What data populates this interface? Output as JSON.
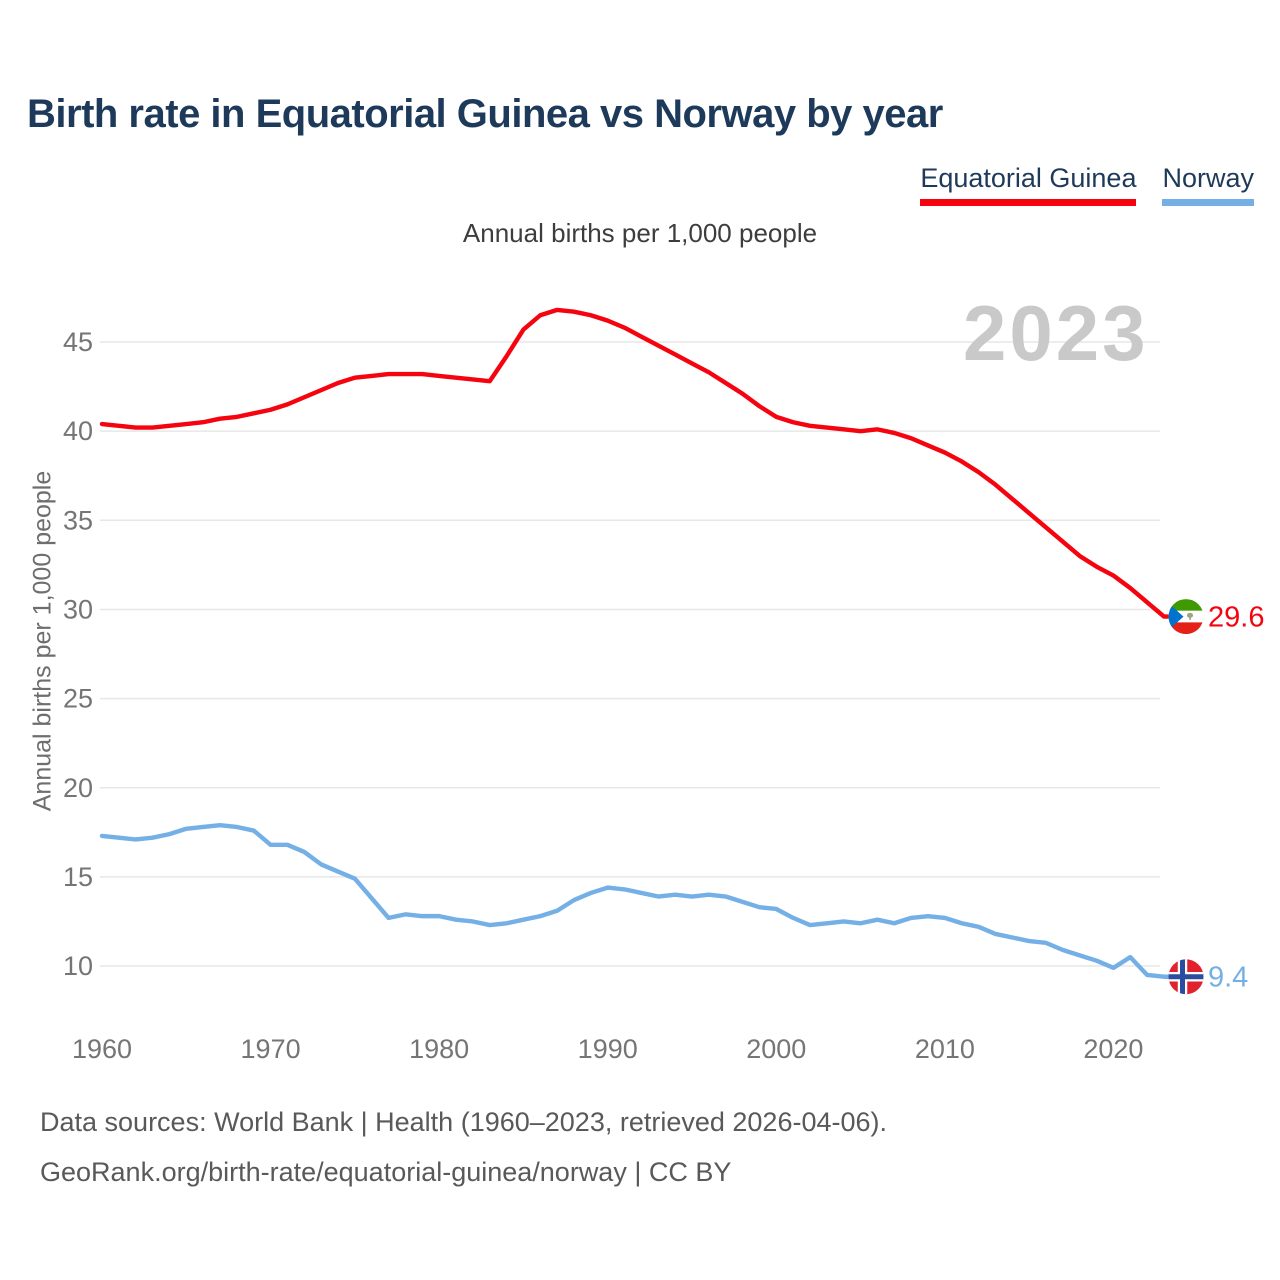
{
  "header": {
    "title": "Birth rate in Equatorial Guinea vs Norway by year"
  },
  "legend": [
    {
      "label": "Equatorial Guinea",
      "color": "#f5040f"
    },
    {
      "label": "Norway",
      "color": "#74b0e6"
    }
  ],
  "watermark": {
    "label": "2023"
  },
  "chart_data": {
    "type": "line",
    "title": "Birth rate in Equatorial Guinea vs Norway by year",
    "subtitle": "Annual births per 1,000 people",
    "ylabel": "Annual births per 1,000 people",
    "xlabel": "",
    "grid": "horizontal",
    "legend_position": "top-right",
    "xticks": [
      1960,
      1970,
      1980,
      1990,
      2000,
      2010,
      2020
    ],
    "yticks": [
      10,
      15,
      20,
      25,
      30,
      35,
      40,
      45
    ],
    "xlim": [
      1960,
      2023
    ],
    "ylim": [
      8.5,
      48
    ],
    "x": [
      1960,
      1961,
      1962,
      1963,
      1964,
      1965,
      1966,
      1967,
      1968,
      1969,
      1970,
      1971,
      1972,
      1973,
      1974,
      1975,
      1976,
      1977,
      1978,
      1979,
      1980,
      1981,
      1982,
      1983,
      1984,
      1985,
      1986,
      1987,
      1988,
      1989,
      1990,
      1991,
      1992,
      1993,
      1994,
      1995,
      1996,
      1997,
      1998,
      1999,
      2000,
      2001,
      2002,
      2003,
      2004,
      2005,
      2006,
      2007,
      2008,
      2009,
      2010,
      2011,
      2012,
      2013,
      2014,
      2015,
      2016,
      2017,
      2018,
      2019,
      2020,
      2021,
      2022,
      2023
    ],
    "series": [
      {
        "name": "Equatorial Guinea",
        "color": "#f5040f",
        "flag": "equatorial-guinea-flag",
        "end_label": "29.6",
        "end_value": 29.6,
        "values": [
          40.4,
          40.3,
          40.2,
          40.2,
          40.3,
          40.4,
          40.5,
          40.7,
          40.8,
          41.0,
          41.2,
          41.5,
          41.9,
          42.3,
          42.7,
          43.0,
          43.1,
          43.2,
          43.2,
          43.2,
          43.1,
          43.0,
          42.9,
          42.8,
          44.2,
          45.7,
          46.5,
          46.8,
          46.7,
          46.5,
          46.2,
          45.8,
          45.3,
          44.8,
          44.3,
          43.8,
          43.3,
          42.7,
          42.1,
          41.4,
          40.8,
          40.5,
          40.3,
          40.2,
          40.1,
          40.0,
          40.1,
          39.9,
          39.6,
          39.2,
          38.8,
          38.3,
          37.7,
          37.0,
          36.2,
          35.4,
          34.6,
          33.8,
          33.0,
          32.4,
          31.9,
          31.2,
          30.4,
          29.6
        ]
      },
      {
        "name": "Norway",
        "color": "#74b0e6",
        "flag": "norway-flag",
        "end_label": "9.4",
        "end_value": 9.4,
        "values": [
          17.3,
          17.2,
          17.1,
          17.2,
          17.4,
          17.7,
          17.8,
          17.9,
          17.8,
          17.6,
          16.8,
          16.8,
          16.4,
          15.7,
          15.3,
          14.9,
          13.8,
          12.7,
          12.9,
          12.8,
          12.8,
          12.6,
          12.5,
          12.3,
          12.4,
          12.6,
          12.8,
          13.1,
          13.7,
          14.1,
          14.4,
          14.3,
          14.1,
          13.9,
          14.0,
          13.9,
          14.0,
          13.9,
          13.6,
          13.3,
          13.2,
          12.7,
          12.3,
          12.4,
          12.5,
          12.4,
          12.6,
          12.4,
          12.7,
          12.8,
          12.7,
          12.4,
          12.2,
          11.8,
          11.6,
          11.4,
          11.3,
          10.9,
          10.6,
          10.3,
          9.9,
          10.5,
          9.5,
          9.4
        ]
      }
    ]
  },
  "footer": {
    "line1": "Data sources: World Bank | Health (1960–2023, retrieved 2026-04-06).",
    "line2": "GeoRank.org/birth-rate/equatorial-guinea/norway | CC BY"
  }
}
